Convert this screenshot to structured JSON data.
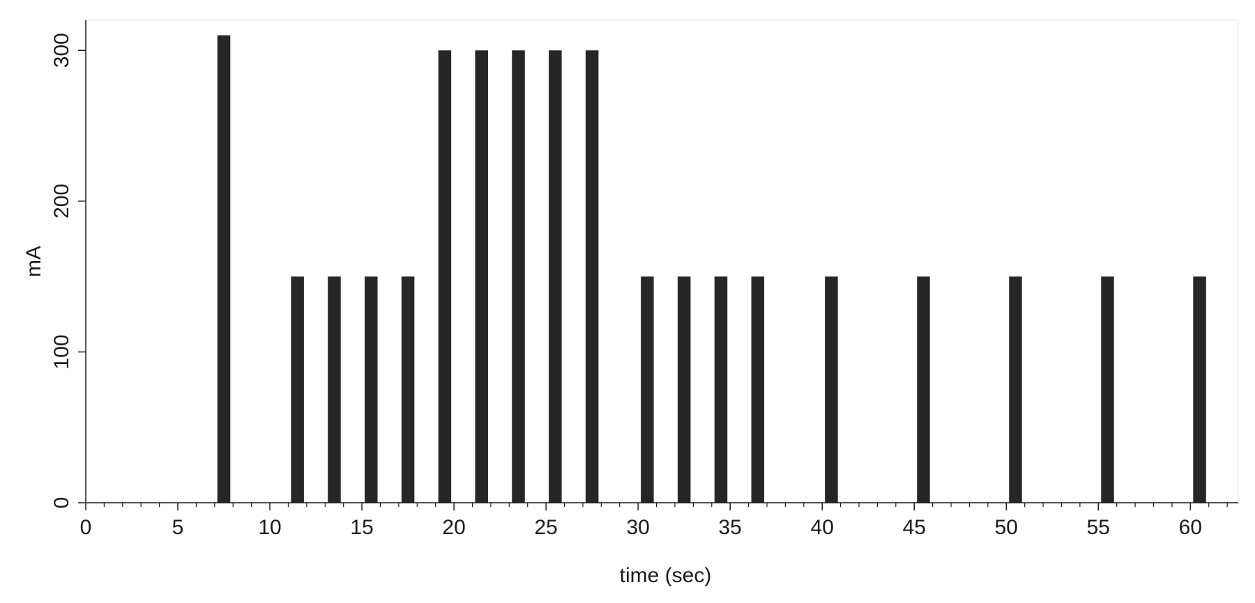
{
  "chart_data": {
    "type": "bar",
    "title": "",
    "xlabel": "time (sec)",
    "ylabel": "mA",
    "xlim": [
      0,
      62.6
    ],
    "ylim": [
      0,
      320
    ],
    "x_ticks": [
      0,
      5,
      10,
      15,
      20,
      25,
      30,
      35,
      40,
      45,
      50,
      55,
      60
    ],
    "x_minor_step": 1,
    "y_ticks": [
      0,
      100,
      200,
      300
    ],
    "bar_width": 0.7,
    "grid": false,
    "legend": "none",
    "bar_color": "#262626",
    "series": [
      {
        "x": [
          7.5,
          11.5,
          13.5,
          15.5,
          17.5,
          19.5,
          21.5,
          23.5,
          25.5,
          27.5,
          30.5,
          32.5,
          34.5,
          36.5,
          40.5,
          45.5,
          50.5,
          55.5,
          60.5
        ],
        "values": [
          310,
          150,
          150,
          150,
          150,
          300,
          300,
          300,
          300,
          300,
          150,
          150,
          150,
          150,
          150,
          150,
          150,
          150,
          150
        ]
      }
    ]
  }
}
